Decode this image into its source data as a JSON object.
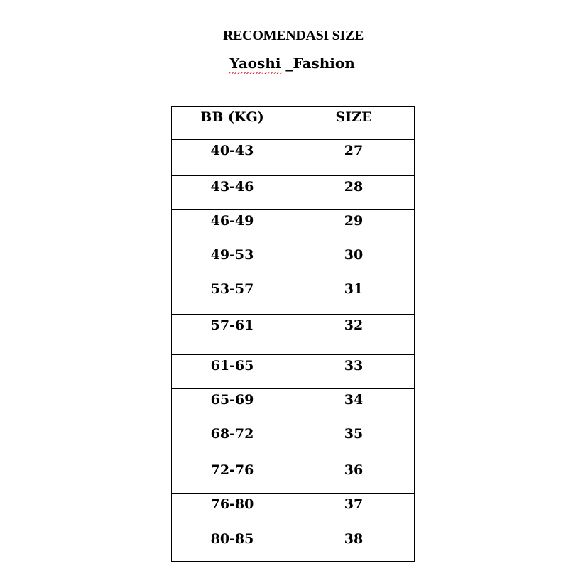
{
  "document": {
    "title": "RECOMENDASI SIZE",
    "subtitle": "Yaoshi _Fashion",
    "table": {
      "headers": [
        "BB (KG)",
        "SIZE"
      ],
      "rows": [
        [
          "40-43",
          "27"
        ],
        [
          "43-46",
          "28"
        ],
        [
          "46-49",
          "29"
        ],
        [
          "49-53",
          "30"
        ],
        [
          "53-57",
          "31"
        ],
        [
          "57-61",
          "32"
        ],
        [
          "61-65",
          "33"
        ],
        [
          "65-69",
          "34"
        ],
        [
          "68-72",
          "35"
        ],
        [
          "72-76",
          "36"
        ],
        [
          "76-80",
          "37"
        ],
        [
          "80-85",
          "38"
        ]
      ]
    }
  }
}
